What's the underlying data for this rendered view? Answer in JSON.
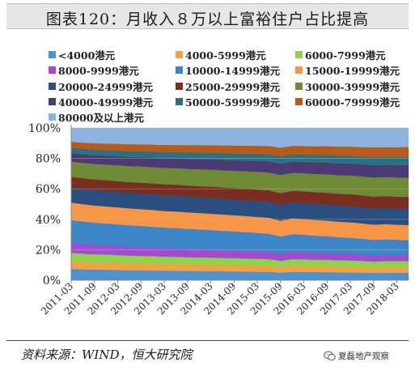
{
  "title": "图表120：月收入８万以上富裕住户占比提高",
  "source": "资料来源：WIND，恒大研究院",
  "watermark": "夏磊地产观察",
  "chart_data": {
    "type": "area",
    "stacked": true,
    "percent": true,
    "ylim": [
      0,
      100
    ],
    "yticks": [
      "0%",
      "20%",
      "40%",
      "60%",
      "80%",
      "100%"
    ],
    "grid": true,
    "legend_position": "top",
    "x": [
      "2011-03",
      "2011-06",
      "2011-09",
      "2011-12",
      "2012-03",
      "2012-06",
      "2012-09",
      "2012-12",
      "2013-03",
      "2013-06",
      "2013-09",
      "2013-12",
      "2014-03",
      "2014-06",
      "2014-09",
      "2014-12",
      "2015-03",
      "2015-06",
      "2015-09",
      "2015-12",
      "2016-03",
      "2016-06",
      "2016-09",
      "2016-12",
      "2017-03",
      "2017-06",
      "2017-09",
      "2017-12",
      "2018-03",
      "2018-06"
    ],
    "xtick_labels": [
      "2011-03",
      "2011-09",
      "2012-03",
      "2012-09",
      "2013-03",
      "2013-09",
      "2014-03",
      "2014-09",
      "2015-03",
      "2015-09",
      "2016-03",
      "2016-09",
      "2017-03",
      "2017-09",
      "2018-03"
    ],
    "series": [
      {
        "name": "<4000港元",
        "color": "#4f90cf",
        "values": [
          7.5,
          7.2,
          7.0,
          6.9,
          6.8,
          6.6,
          6.5,
          6.4,
          6.3,
          6.2,
          6.1,
          6.0,
          6.0,
          5.9,
          5.8,
          5.7,
          5.6,
          5.5,
          5.0,
          5.6,
          5.5,
          5.4,
          5.3,
          5.2,
          5.1,
          5.0,
          4.8,
          5.0,
          5.0,
          5.0
        ]
      },
      {
        "name": "4000-5999港元",
        "color": "#f0a244",
        "values": [
          5.0,
          4.9,
          4.8,
          4.8,
          4.7,
          4.6,
          4.5,
          4.5,
          4.4,
          4.4,
          4.3,
          4.3,
          4.3,
          4.2,
          4.2,
          4.1,
          4.1,
          4.0,
          3.8,
          4.0,
          4.0,
          3.9,
          3.9,
          3.8,
          3.8,
          3.7,
          3.6,
          3.7,
          3.7,
          3.7
        ]
      },
      {
        "name": "6000-7999港元",
        "color": "#8ed34a",
        "values": [
          5.5,
          5.4,
          5.3,
          5.2,
          5.1,
          5.0,
          5.0,
          4.9,
          4.8,
          4.8,
          4.7,
          4.7,
          4.6,
          4.6,
          4.5,
          4.5,
          4.4,
          4.4,
          4.0,
          4.3,
          4.3,
          4.2,
          4.2,
          4.1,
          4.1,
          4.0,
          3.8,
          3.9,
          3.9,
          3.9
        ]
      },
      {
        "name": "8000-9999港元",
        "color": "#a24ad2",
        "values": [
          6.5,
          6.3,
          6.1,
          6.0,
          5.9,
          5.8,
          5.7,
          5.6,
          5.5,
          5.4,
          5.3,
          5.2,
          5.1,
          5.0,
          5.0,
          4.9,
          4.8,
          4.7,
          4.5,
          4.6,
          4.5,
          4.4,
          4.3,
          4.2,
          4.1,
          4.0,
          3.9,
          3.9,
          3.8,
          3.8
        ]
      },
      {
        "name": "10000-14999港元",
        "color": "#3c86c8",
        "values": [
          15.0,
          14.8,
          14.6,
          14.4,
          14.2,
          14.1,
          14.0,
          13.8,
          13.6,
          13.5,
          13.4,
          13.2,
          13.0,
          12.8,
          12.6,
          12.4,
          12.2,
          12.0,
          11.5,
          11.8,
          11.6,
          11.4,
          11.2,
          11.0,
          10.8,
          10.6,
          10.4,
          10.4,
          10.2,
          10.0
        ]
      },
      {
        "name": "15000-19999港元",
        "color": "#f79646",
        "values": [
          11.5,
          11.4,
          11.3,
          11.2,
          11.2,
          11.1,
          11.0,
          11.0,
          10.9,
          10.9,
          10.8,
          10.8,
          10.7,
          10.7,
          10.6,
          10.6,
          10.5,
          10.5,
          10.3,
          10.4,
          10.4,
          10.3,
          10.3,
          10.2,
          10.2,
          10.1,
          10.0,
          10.0,
          9.9,
          9.9
        ]
      },
      {
        "name": "20000-24999港元",
        "color": "#2a4e80",
        "values": [
          10.0,
          10.0,
          10.1,
          10.1,
          10.1,
          10.2,
          10.2,
          10.2,
          10.3,
          10.3,
          10.3,
          10.3,
          10.4,
          10.4,
          10.4,
          10.4,
          10.5,
          10.5,
          10.5,
          10.5,
          10.5,
          10.5,
          10.6,
          10.6,
          10.6,
          10.6,
          10.6,
          10.6,
          10.6,
          10.6
        ]
      },
      {
        "name": "25000-29999港元",
        "color": "#7a2e22",
        "values": [
          7.0,
          7.0,
          7.0,
          7.1,
          7.1,
          7.1,
          7.2,
          7.2,
          7.2,
          7.3,
          7.3,
          7.3,
          7.4,
          7.4,
          7.4,
          7.5,
          7.5,
          7.5,
          7.6,
          7.6,
          7.6,
          7.7,
          7.7,
          7.7,
          7.8,
          7.8,
          7.8,
          7.8,
          7.8,
          7.8
        ]
      },
      {
        "name": "30000-39999港元",
        "color": "#6f8b36",
        "values": [
          10.0,
          10.1,
          10.2,
          10.3,
          10.4,
          10.5,
          10.6,
          10.7,
          10.8,
          10.9,
          11.0,
          11.1,
          11.2,
          11.3,
          11.4,
          11.5,
          11.6,
          11.7,
          11.9,
          11.8,
          11.9,
          12.0,
          12.1,
          12.2,
          12.3,
          12.4,
          12.6,
          12.5,
          12.6,
          12.7
        ]
      },
      {
        "name": "40000-49999港元",
        "color": "#4c3a74",
        "values": [
          5.5,
          5.6,
          5.7,
          5.8,
          5.9,
          6.0,
          6.1,
          6.2,
          6.3,
          6.4,
          6.5,
          6.6,
          6.7,
          6.8,
          6.9,
          7.0,
          7.1,
          7.2,
          7.4,
          7.3,
          7.4,
          7.5,
          7.6,
          7.7,
          7.8,
          7.9,
          8.1,
          8.0,
          8.1,
          8.2
        ]
      },
      {
        "name": "50000-59999港元",
        "color": "#2a7184",
        "values": [
          3.5,
          3.6,
          3.7,
          3.7,
          3.8,
          3.9,
          3.9,
          4.0,
          4.1,
          4.1,
          4.2,
          4.3,
          4.3,
          4.4,
          4.5,
          4.5,
          4.6,
          4.7,
          4.9,
          4.8,
          4.8,
          4.9,
          5.0,
          5.1,
          5.1,
          5.2,
          5.3,
          5.3,
          5.4,
          5.5
        ]
      },
      {
        "name": "60000-79999港元",
        "color": "#b85a1a",
        "values": [
          4.0,
          4.1,
          4.2,
          4.3,
          4.4,
          4.5,
          4.5,
          4.6,
          4.7,
          4.8,
          4.9,
          5.0,
          5.0,
          5.1,
          5.2,
          5.3,
          5.4,
          5.5,
          5.7,
          5.6,
          5.7,
          5.8,
          5.9,
          6.0,
          6.1,
          6.2,
          6.4,
          6.3,
          6.4,
          6.5
        ]
      },
      {
        "name": "80000及以上港元",
        "color": "#8fb3df",
        "values": [
          9.0,
          9.6,
          10.0,
          10.2,
          10.4,
          10.6,
          10.8,
          10.9,
          11.1,
          11.1,
          11.2,
          11.2,
          11.3,
          11.4,
          11.5,
          11.6,
          11.7,
          11.8,
          12.9,
          11.7,
          11.8,
          12.0,
          11.9,
          12.2,
          12.2,
          12.5,
          12.7,
          12.6,
          12.6,
          12.4
        ]
      }
    ]
  }
}
